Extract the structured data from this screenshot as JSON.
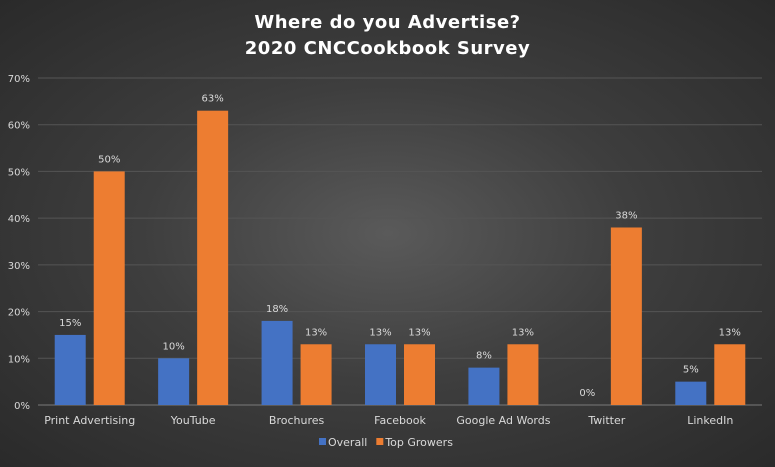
{
  "chart_data": {
    "type": "bar",
    "title": "Where do you Advertise?",
    "subtitle": "2020 CNCCookbook  Survey",
    "categories": [
      "Print Advertising",
      "YouTube",
      "Brochures",
      "Facebook",
      "Google Ad Words",
      "Twitter",
      "LinkedIn"
    ],
    "series": [
      {
        "name": "Overall",
        "color": "#4472c4",
        "values": [
          15,
          10,
          18,
          13,
          8,
          0,
          5
        ]
      },
      {
        "name": "Top Growers",
        "color": "#ed7d31",
        "values": [
          50,
          63,
          13,
          13,
          13,
          38,
          13
        ]
      }
    ],
    "data_labels": {
      "Overall": [
        "15%",
        "10%",
        "18%",
        "13%",
        "8%",
        "0%",
        "5%"
      ],
      "Top Growers": [
        "50%",
        "63%",
        "13%",
        "13%",
        "13%",
        "38%",
        "13%"
      ]
    },
    "y_ticks": [
      "0%",
      "10%",
      "20%",
      "30%",
      "40%",
      "50%",
      "60%",
      "70%"
    ],
    "ylim": [
      0,
      70
    ],
    "grid": true,
    "legend_position": "bottom"
  }
}
